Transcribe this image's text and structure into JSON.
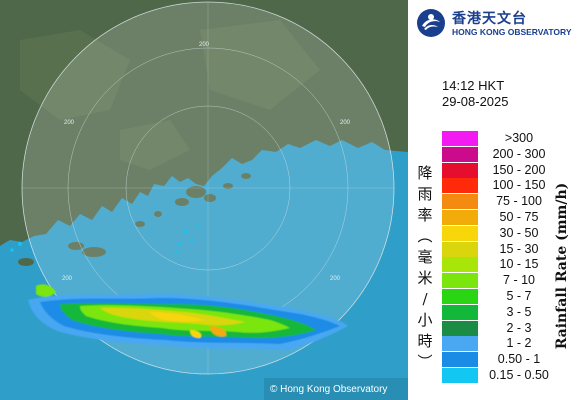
{
  "header": {
    "logo_chinese": "香港天文台",
    "logo_english": "HONG KONG OBSERVATORY"
  },
  "timestamp": {
    "time": "14:12 HKT",
    "date": "29-08-2025"
  },
  "legend": {
    "chinese_title": "降雨率(毫米/小時)",
    "english_title": "Rainfall Rate (mm/h)",
    "items": [
      {
        "label": ">300",
        "color": "#f21cf2"
      },
      {
        "label": "200 - 300",
        "color": "#cc0a8c"
      },
      {
        "label": "150 - 200",
        "color": "#e60e2e"
      },
      {
        "label": "100 - 150",
        "color": "#ff2a0a"
      },
      {
        "label": "75 - 100",
        "color": "#f58a10"
      },
      {
        "label": "50 - 75",
        "color": "#f2ac0a"
      },
      {
        "label": "30 - 50",
        "color": "#f7d60a"
      },
      {
        "label": "15 - 30",
        "color": "#d9d60e"
      },
      {
        "label": "10 - 15",
        "color": "#a8e60a"
      },
      {
        "label": "7 - 10",
        "color": "#7ae60e"
      },
      {
        "label": "5 - 7",
        "color": "#2ad614"
      },
      {
        "label": "3 - 5",
        "color": "#12b83a"
      },
      {
        "label": "2 - 3",
        "color": "#1a8c44"
      },
      {
        "label": "1 - 2",
        "color": "#4aa8f2"
      },
      {
        "label": "0.50 - 1",
        "color": "#1a8ce6"
      },
      {
        "label": "0.15 - 0.50",
        "color": "#12c8f2"
      }
    ]
  },
  "map": {
    "range_ring_labels": [
      "200",
      "200",
      "200",
      "200",
      "200",
      "200"
    ],
    "copyright": "© Hong Kong Observatory",
    "sea_color": "#3fb4da",
    "land_color": "#4e6648"
  }
}
